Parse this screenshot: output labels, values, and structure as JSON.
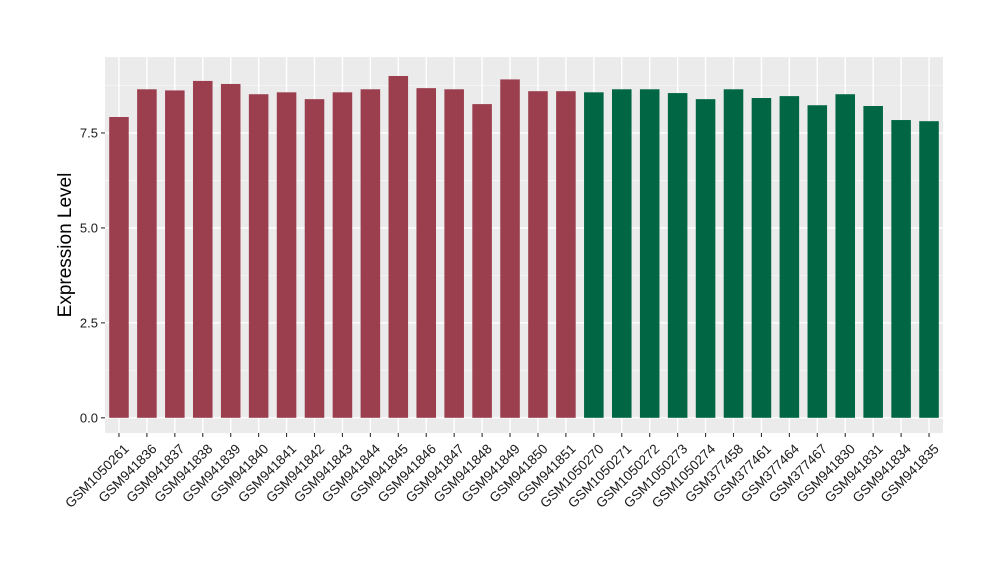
{
  "chart_data": {
    "type": "bar",
    "title": "",
    "xlabel": "",
    "ylabel": "Expression Level",
    "ylim": [
      -0.4,
      9.5
    ],
    "yticks": [
      0.0,
      2.5,
      5.0,
      7.5
    ],
    "ytick_labels": [
      "0.0",
      "2.5",
      "5.0",
      "7.5"
    ],
    "grid": true,
    "legend": "none",
    "panel_color": "#ebebeb",
    "categories": [
      "GSM1050261",
      "GSM941836",
      "GSM941837",
      "GSM941838",
      "GSM941839",
      "GSM941840",
      "GSM941841",
      "GSM941842",
      "GSM941843",
      "GSM941844",
      "GSM941845",
      "GSM941846",
      "GSM941847",
      "GSM941848",
      "GSM941849",
      "GSM941850",
      "GSM941851",
      "GSM1050270",
      "GSM1050271",
      "GSM1050272",
      "GSM1050273",
      "GSM1050274",
      "GSM377458",
      "GSM377461",
      "GSM377464",
      "GSM377467",
      "GSM941830",
      "GSM941831",
      "GSM941834",
      "GSM941835"
    ],
    "values": [
      7.92,
      8.65,
      8.62,
      8.87,
      8.79,
      8.52,
      8.57,
      8.39,
      8.57,
      8.65,
      9.0,
      8.68,
      8.65,
      8.26,
      8.91,
      8.6,
      8.6,
      8.57,
      8.65,
      8.65,
      8.55,
      8.39,
      8.65,
      8.42,
      8.47,
      8.23,
      8.52,
      8.21,
      7.84,
      7.81
    ],
    "series": [
      {
        "color": "#9b3f4f",
        "range": [
          0,
          16
        ]
      },
      {
        "color": "#006644",
        "range": [
          17,
          29
        ]
      }
    ]
  }
}
